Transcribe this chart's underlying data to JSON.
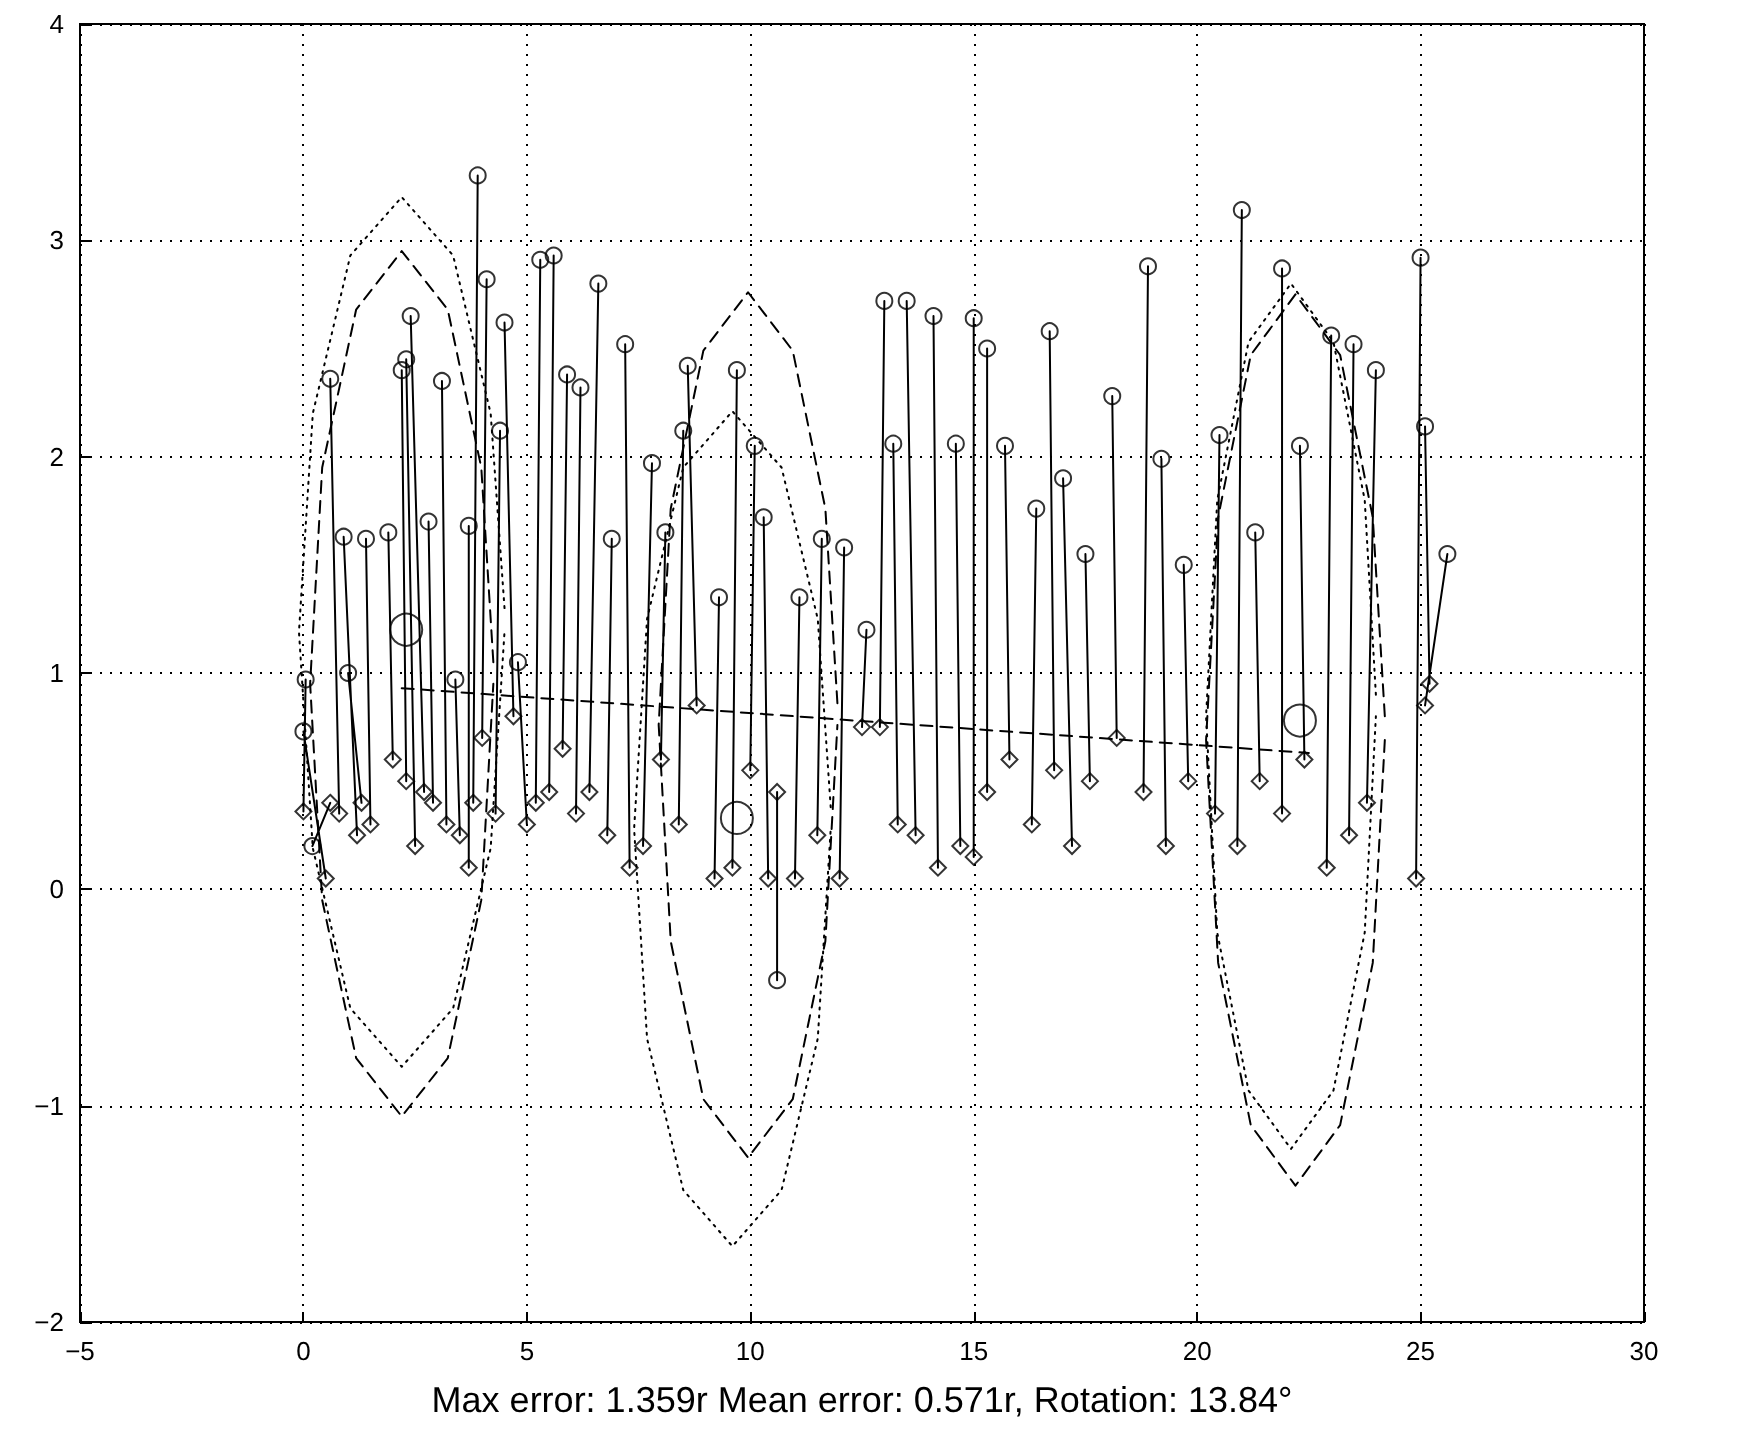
{
  "chart_data": {
    "type": "scatter",
    "xlabel": "Max error: 1.359r Mean error: 0.571r, Rotation: 13.84°",
    "xlim": [
      -5,
      30
    ],
    "xticks": [
      -5,
      0,
      5,
      10,
      15,
      20,
      25,
      30
    ],
    "ylim": [
      -2,
      4
    ],
    "yticks": [
      -2,
      -1,
      0,
      1,
      2,
      3,
      4
    ],
    "grid": true,
    "series": [
      {
        "type": "line",
        "color": "#000000",
        "marker": "none",
        "line_style": "dashed",
        "x": [
          2.2,
          22.5
        ],
        "values": [
          0.93,
          0.63
        ]
      },
      {
        "type": "line",
        "color": "#000000",
        "marker": "none",
        "line_style": "dashed",
        "x": [
          4.25,
          3.98,
          3.23,
          2.2,
          1.18,
          0.42,
          0.15,
          0.42,
          1.18,
          2.2,
          3.23,
          3.98,
          4.25
        ],
        "values": [
          1.05,
          1.95,
          2.68,
          2.95,
          2.68,
          1.95,
          0.95,
          -0.05,
          -0.78,
          -1.05,
          -0.78,
          -0.05,
          0.95
        ]
      },
      {
        "type": "line",
        "color": "#000000",
        "marker": "none",
        "line_style": "dotted",
        "x": [
          4.5,
          4.19,
          3.35,
          2.2,
          1.05,
          0.21,
          -0.1,
          0.21,
          1.05,
          2.2,
          3.35,
          4.19,
          4.5
        ],
        "values": [
          1.3,
          2.2,
          2.93,
          3.2,
          2.93,
          2.2,
          1.19,
          0.19,
          -0.55,
          -0.82,
          -0.55,
          0.19,
          1.19
        ]
      },
      {
        "type": "line",
        "color": "#000000",
        "marker": "none",
        "line_style": "dashed",
        "x": [
          11.95,
          11.68,
          10.95,
          9.95,
          8.95,
          8.22,
          7.95,
          8.22,
          8.95,
          9.95,
          10.95,
          11.68,
          11.95
        ],
        "values": [
          0.86,
          1.76,
          2.49,
          2.76,
          2.49,
          1.76,
          0.76,
          -0.24,
          -0.97,
          -1.24,
          -0.97,
          -0.24,
          0.76
        ]
      },
      {
        "type": "line",
        "color": "#000000",
        "marker": "none",
        "line_style": "dotted",
        "x": [
          11.8,
          11.51,
          10.7,
          9.6,
          8.5,
          7.69,
          7.4,
          7.69,
          8.5,
          9.6,
          10.7,
          11.51,
          11.8
        ],
        "values": [
          0.38,
          1.25,
          1.95,
          2.21,
          1.95,
          1.25,
          0.28,
          -0.69,
          -1.39,
          -1.65,
          -1.39,
          -0.69,
          0.28
        ]
      },
      {
        "type": "line",
        "color": "#000000",
        "marker": "none",
        "line_style": "dashed",
        "x": [
          24.2,
          23.93,
          23.2,
          22.2,
          21.2,
          20.47,
          20.2,
          20.47,
          21.2,
          22.2,
          23.2,
          23.93,
          24.2
        ],
        "values": [
          0.8,
          1.72,
          2.47,
          2.75,
          2.47,
          1.72,
          0.69,
          -0.34,
          -1.09,
          -1.37,
          -1.09,
          -0.34,
          0.69
        ]
      },
      {
        "type": "line",
        "color": "#000000",
        "marker": "none",
        "line_style": "dotted",
        "x": [
          24.0,
          23.75,
          23.05,
          22.1,
          21.15,
          20.45,
          20.2,
          20.45,
          21.15,
          22.1,
          23.05,
          23.75,
          24.0
        ],
        "values": [
          0.9,
          1.8,
          2.53,
          2.8,
          2.53,
          1.8,
          0.8,
          -0.2,
          -0.93,
          -1.2,
          -0.93,
          -0.2,
          0.8
        ]
      },
      {
        "type": "line",
        "color": "#000000",
        "marker": "none",
        "line_style": "solid",
        "x": [
          0.0,
          0.05,
          null,
          0.5,
          0.0,
          null,
          0.6,
          0.2,
          null,
          0.8,
          0.6,
          null,
          1.2,
          0.9,
          null,
          1.3,
          1.0,
          null,
          1.5,
          1.4,
          null,
          2.0,
          1.9,
          null,
          2.3,
          2.2,
          null,
          2.5,
          2.3,
          null,
          2.7,
          2.4,
          null,
          2.9,
          2.8,
          null,
          3.2,
          3.1,
          null,
          3.5,
          3.4,
          null,
          3.7,
          3.7,
          null,
          3.8,
          3.9,
          null,
          4.0,
          4.1,
          null,
          4.3,
          4.4,
          null,
          4.7,
          4.5,
          null,
          5.0,
          4.8,
          null,
          5.2,
          5.3,
          null,
          5.5,
          5.6,
          null,
          5.8,
          5.9,
          null,
          6.1,
          6.2,
          null,
          6.4,
          6.6,
          null,
          6.8,
          6.9,
          null,
          7.3,
          7.2,
          null,
          7.6,
          7.8,
          null,
          8.0,
          8.1,
          null,
          8.4,
          8.5,
          null,
          8.8,
          8.6,
          null,
          9.2,
          9.3,
          null,
          9.6,
          9.7,
          null,
          10.0,
          10.1,
          null,
          10.4,
          10.3,
          null,
          10.6,
          10.6,
          null,
          11.0,
          11.1,
          null,
          11.5,
          11.6,
          null,
          12.0,
          12.1,
          null,
          12.5,
          12.6,
          null,
          12.9,
          13.0,
          null,
          13.3,
          13.2,
          null,
          13.7,
          13.5,
          null,
          14.2,
          14.1,
          null,
          14.7,
          14.6,
          null,
          15.0,
          15.0,
          null,
          15.3,
          15.3,
          null,
          15.8,
          15.7,
          null,
          16.3,
          16.4,
          null,
          16.8,
          16.7,
          null,
          17.2,
          17.0,
          null,
          17.6,
          17.5,
          null,
          18.2,
          18.1,
          null,
          18.8,
          18.9,
          null,
          19.3,
          19.2,
          null,
          19.8,
          19.7,
          null,
          20.4,
          20.5,
          null,
          20.9,
          21.0,
          null,
          21.4,
          21.3,
          null,
          21.9,
          21.9,
          null,
          22.4,
          22.3,
          null,
          22.9,
          23.0,
          null,
          23.4,
          23.5,
          null,
          23.8,
          24.0,
          null,
          24.9,
          25.0,
          null,
          25.2,
          25.1,
          null,
          25.1,
          25.6
        ],
        "values": [
          0.36,
          0.97,
          null,
          0.05,
          0.73,
          null,
          0.4,
          0.2,
          null,
          0.35,
          2.36,
          null,
          0.25,
          1.63,
          null,
          0.4,
          1.0,
          null,
          0.3,
          1.62,
          null,
          0.6,
          1.65,
          null,
          0.5,
          2.4,
          null,
          0.2,
          2.45,
          null,
          0.45,
          2.65,
          null,
          0.4,
          1.7,
          null,
          0.3,
          2.35,
          null,
          0.25,
          0.97,
          null,
          0.1,
          1.68,
          null,
          0.4,
          3.3,
          null,
          0.7,
          2.82,
          null,
          0.35,
          2.12,
          null,
          0.8,
          2.62,
          null,
          0.3,
          1.05,
          null,
          0.4,
          2.91,
          null,
          0.45,
          2.93,
          null,
          0.65,
          2.38,
          null,
          0.35,
          2.32,
          null,
          0.45,
          2.8,
          null,
          0.25,
          1.62,
          null,
          0.1,
          2.52,
          null,
          0.2,
          1.97,
          null,
          0.6,
          1.65,
          null,
          0.3,
          2.12,
          null,
          0.85,
          2.42,
          null,
          0.05,
          1.35,
          null,
          0.1,
          2.4,
          null,
          0.55,
          2.05,
          null,
          0.05,
          1.72,
          null,
          0.45,
          -0.42,
          null,
          0.05,
          1.35,
          null,
          0.25,
          1.62,
          null,
          0.05,
          1.58,
          null,
          0.75,
          1.2,
          null,
          0.75,
          2.72,
          null,
          0.3,
          2.06,
          null,
          0.25,
          2.72,
          null,
          0.1,
          2.65,
          null,
          0.2,
          2.06,
          null,
          0.15,
          2.64,
          null,
          0.45,
          2.5,
          null,
          0.6,
          2.05,
          null,
          0.3,
          1.76,
          null,
          0.55,
          2.58,
          null,
          0.2,
          1.9,
          null,
          0.5,
          1.55,
          null,
          0.7,
          2.28,
          null,
          0.45,
          2.88,
          null,
          0.2,
          1.99,
          null,
          0.5,
          1.5,
          null,
          0.35,
          2.1,
          null,
          0.2,
          3.14,
          null,
          0.5,
          1.65,
          null,
          0.35,
          2.87,
          null,
          0.6,
          2.05,
          null,
          0.1,
          2.56,
          null,
          0.25,
          2.52,
          null,
          0.4,
          2.4,
          null,
          0.05,
          2.92,
          null,
          0.95,
          2.14,
          null,
          0.85,
          1.55
        ]
      },
      {
        "color": "#000000",
        "marker": "diamond",
        "x": [
          0.0,
          0.5,
          0.6,
          0.8,
          1.2,
          1.3,
          1.5,
          2.0,
          2.3,
          2.5,
          2.7,
          2.9,
          3.2,
          3.5,
          3.7,
          3.8,
          4.0,
          4.3,
          4.7,
          5.0,
          5.2,
          5.5,
          5.8,
          6.1,
          6.4,
          6.8,
          7.3,
          7.6,
          8.0,
          8.4,
          8.8,
          9.2,
          9.6,
          10.0,
          10.4,
          10.6,
          11.0,
          11.5,
          12.0,
          12.5,
          12.9,
          13.3,
          13.7,
          14.2,
          14.7,
          15.0,
          15.3,
          15.8,
          16.3,
          16.8,
          17.2,
          17.6,
          18.2,
          18.8,
          19.3,
          19.8,
          20.4,
          20.9,
          21.4,
          21.9,
          22.4,
          22.9,
          23.4,
          23.8,
          24.9,
          25.2,
          25.1
        ],
        "values": [
          0.36,
          0.05,
          0.4,
          0.35,
          0.25,
          0.4,
          0.3,
          0.6,
          0.5,
          0.2,
          0.45,
          0.4,
          0.3,
          0.25,
          0.1,
          0.4,
          0.7,
          0.35,
          0.8,
          0.3,
          0.4,
          0.45,
          0.65,
          0.35,
          0.45,
          0.25,
          0.1,
          0.2,
          0.6,
          0.3,
          0.85,
          0.05,
          0.1,
          0.55,
          0.05,
          0.45,
          0.05,
          0.25,
          0.05,
          0.75,
          0.75,
          0.3,
          0.25,
          0.1,
          0.2,
          0.15,
          0.45,
          0.6,
          0.3,
          0.55,
          0.2,
          0.5,
          0.7,
          0.45,
          0.2,
          0.5,
          0.35,
          0.2,
          0.5,
          0.35,
          0.6,
          0.1,
          0.25,
          0.4,
          0.05,
          0.95,
          0.85
        ]
      },
      {
        "color": "#000000",
        "marker": "circle",
        "x": [
          0.05,
          0.0,
          0.2,
          0.6,
          0.9,
          1.0,
          1.4,
          1.9,
          2.2,
          2.3,
          2.4,
          2.8,
          3.1,
          3.4,
          3.7,
          3.9,
          4.1,
          4.4,
          4.5,
          4.8,
          5.3,
          5.6,
          5.9,
          6.2,
          6.6,
          6.9,
          7.2,
          7.8,
          8.1,
          8.5,
          8.6,
          9.3,
          9.7,
          10.1,
          10.3,
          10.6,
          11.1,
          11.6,
          12.1,
          12.6,
          13.0,
          13.2,
          13.5,
          14.1,
          14.6,
          15.0,
          15.3,
          15.7,
          16.4,
          16.7,
          17.0,
          17.5,
          18.1,
          18.9,
          19.2,
          19.7,
          20.5,
          21.0,
          21.3,
          21.9,
          22.3,
          23.0,
          23.5,
          24.0,
          25.0,
          25.1,
          25.6
        ],
        "values": [
          0.97,
          0.73,
          0.2,
          2.36,
          1.63,
          1.0,
          1.62,
          1.65,
          2.4,
          2.45,
          2.65,
          1.7,
          2.35,
          0.97,
          1.68,
          3.3,
          2.82,
          2.12,
          2.62,
          1.05,
          2.91,
          2.93,
          2.38,
          2.32,
          2.8,
          1.62,
          2.52,
          1.97,
          1.65,
          2.12,
          2.42,
          1.35,
          2.4,
          2.05,
          1.72,
          -0.42,
          1.35,
          1.62,
          1.58,
          1.2,
          2.72,
          2.06,
          2.72,
          2.65,
          2.06,
          2.64,
          2.5,
          2.05,
          1.76,
          2.58,
          1.9,
          1.55,
          2.28,
          2.88,
          1.99,
          1.5,
          2.1,
          3.14,
          1.65,
          2.87,
          2.05,
          2.56,
          2.52,
          2.4,
          2.92,
          2.14,
          1.55
        ]
      },
      {
        "type": "bubble",
        "color": "#000000",
        "marker": "circle",
        "x": [
          2.3,
          9.7,
          22.3
        ],
        "values": [
          1.2,
          0.33,
          0.78
        ],
        "sizes": [
          1,
          1,
          1
        ]
      }
    ]
  }
}
